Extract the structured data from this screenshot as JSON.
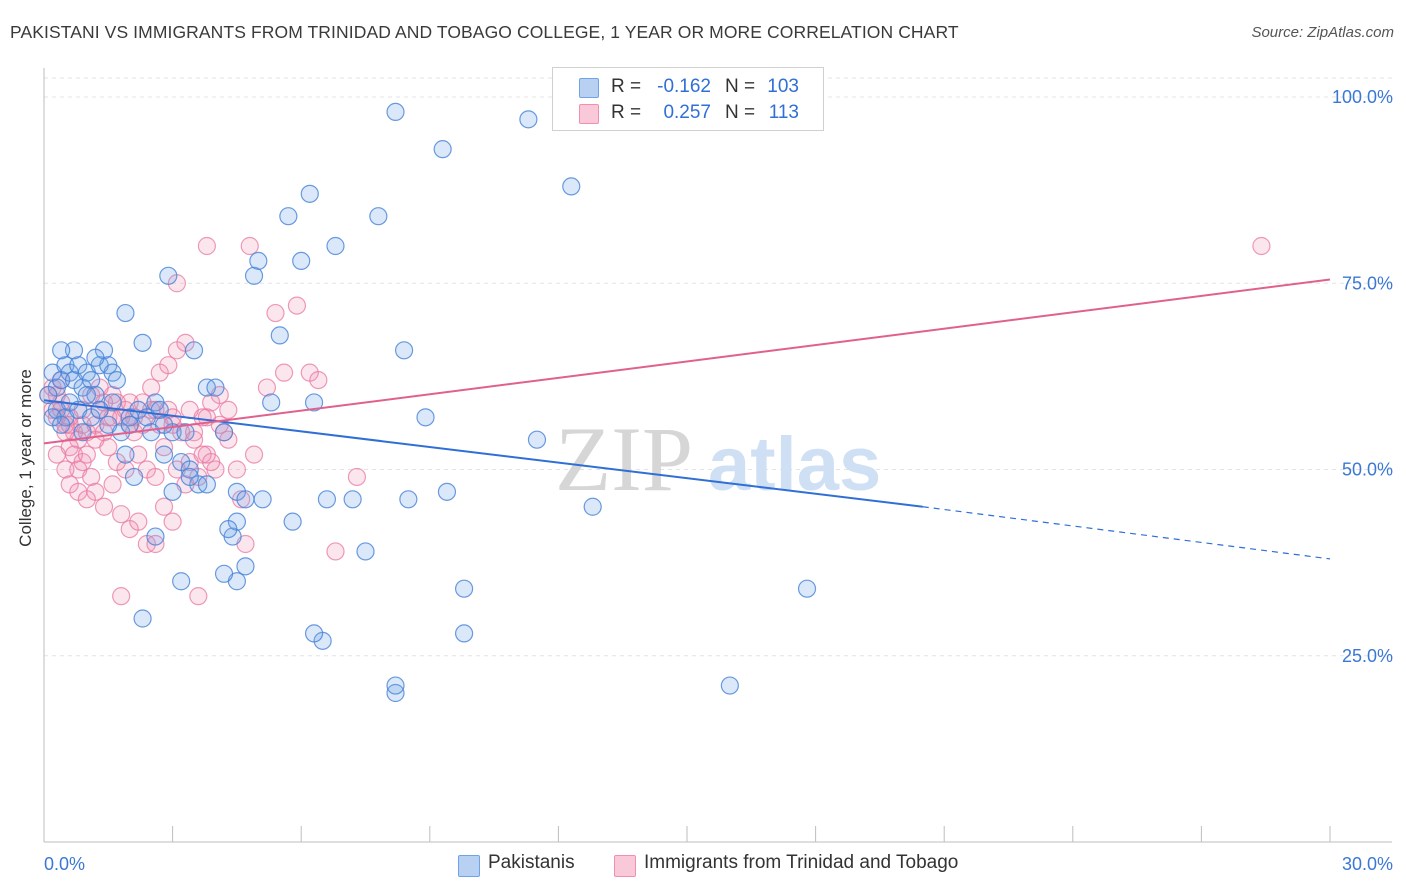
{
  "header": {
    "title": "PAKISTANI VS IMMIGRANTS FROM TRINIDAD AND TOBAGO COLLEGE, 1 YEAR OR MORE CORRELATION CHART",
    "source": "Source: ZipAtlas.com"
  },
  "legend": {
    "row1": {
      "r_label": "R =",
      "r_value": "-0.162",
      "n_label": "N =",
      "n_value": "103"
    },
    "row2": {
      "r_label": "R =",
      "r_value": "0.257",
      "n_label": "N =",
      "n_value": "113"
    }
  },
  "bottom_legend": {
    "pakistanis": "Pakistanis",
    "trinidad": "Immigrants from Trinidad and Tobago"
  },
  "watermark": {
    "zip": "ZIP",
    "atlas": "atlas"
  },
  "colors": {
    "blue": "#6fa3e6",
    "blue_line": "#2f6fd6",
    "pink": "#f28fb0",
    "pink_line": "#e0608e",
    "tick_text": "#3a78d4"
  },
  "chart_data": {
    "type": "scatter",
    "title": "PAKISTANI VS IMMIGRANTS FROM TRINIDAD AND TOBAGO COLLEGE, 1 YEAR OR MORE CORRELATION CHART",
    "ylabel": "College, 1 year or more",
    "xlabel": "",
    "xlim": [
      0,
      30
    ],
    "ylim": [
      0,
      105
    ],
    "x_ticks_labels": [
      "0.0%",
      "30.0%"
    ],
    "y_ticks": [
      25,
      50,
      75,
      100
    ],
    "y_tick_labels": [
      "25.0%",
      "50.0%",
      "75.0%",
      "100.0%"
    ],
    "grid": true,
    "series": [
      {
        "name": "Pakistanis",
        "color": "#6fa3e6",
        "r": -0.162,
        "n": 103,
        "trend": {
          "x0": 0,
          "y0": 59.3,
          "x1": 20.5,
          "y1": 45.0,
          "dash_to_x": 30,
          "dash_to_y": 38.0
        },
        "points": [
          [
            0.2,
            63
          ],
          [
            0.3,
            61
          ],
          [
            0.4,
            62
          ],
          [
            0.5,
            64
          ],
          [
            0.6,
            63
          ],
          [
            0.7,
            62
          ],
          [
            0.8,
            64
          ],
          [
            0.9,
            61
          ],
          [
            1.0,
            63
          ],
          [
            1.1,
            62
          ],
          [
            1.2,
            60
          ],
          [
            1.3,
            64
          ],
          [
            1.4,
            66
          ],
          [
            1.5,
            64
          ],
          [
            1.6,
            63
          ],
          [
            0.3,
            58
          ],
          [
            0.5,
            57
          ],
          [
            0.6,
            59
          ],
          [
            0.8,
            58
          ],
          [
            1.0,
            60
          ],
          [
            0.2,
            57
          ],
          [
            0.4,
            56
          ],
          [
            1.1,
            57
          ],
          [
            1.3,
            58
          ],
          [
            1.5,
            56
          ],
          [
            1.8,
            55
          ],
          [
            2.0,
            57
          ],
          [
            2.2,
            58
          ],
          [
            2.4,
            57
          ],
          [
            2.6,
            59
          ],
          [
            1.9,
            52
          ],
          [
            2.1,
            49
          ],
          [
            2.5,
            55
          ],
          [
            2.8,
            52
          ],
          [
            3.0,
            55
          ],
          [
            3.2,
            51
          ],
          [
            3.4,
            50
          ],
          [
            3.6,
            48
          ],
          [
            3.8,
            61
          ],
          [
            4.0,
            61
          ],
          [
            4.2,
            55
          ],
          [
            4.5,
            47
          ],
          [
            4.7,
            46
          ],
          [
            3.0,
            47
          ],
          [
            2.6,
            41
          ],
          [
            4.4,
            41
          ],
          [
            4.5,
            43
          ],
          [
            5.1,
            46
          ],
          [
            5.8,
            43
          ],
          [
            5.3,
            59
          ],
          [
            6.3,
            59
          ],
          [
            6.6,
            46
          ],
          [
            7.2,
            46
          ],
          [
            7.5,
            39
          ],
          [
            8.5,
            46
          ],
          [
            8.9,
            57
          ],
          [
            9.4,
            47
          ],
          [
            2.3,
            67
          ],
          [
            1.9,
            71
          ],
          [
            2.9,
            76
          ],
          [
            3.5,
            66
          ],
          [
            4.9,
            76
          ],
          [
            5.0,
            78
          ],
          [
            5.5,
            68
          ],
          [
            5.7,
            84
          ],
          [
            6.0,
            78
          ],
          [
            6.2,
            87
          ],
          [
            6.8,
            80
          ],
          [
            7.8,
            84
          ],
          [
            8.2,
            98
          ],
          [
            8.4,
            66
          ],
          [
            9.3,
            93
          ],
          [
            11.3,
            97
          ],
          [
            11.5,
            54
          ],
          [
            12.3,
            88
          ],
          [
            12.8,
            45
          ],
          [
            17.8,
            34
          ],
          [
            16.0,
            21
          ],
          [
            9.8,
            34
          ],
          [
            9.8,
            28
          ],
          [
            8.2,
            20
          ],
          [
            8.2,
            21
          ],
          [
            6.5,
            27
          ],
          [
            6.3,
            28
          ],
          [
            4.5,
            35
          ],
          [
            4.2,
            36
          ],
          [
            3.2,
            35
          ],
          [
            2.3,
            30
          ],
          [
            4.3,
            42
          ],
          [
            4.7,
            37
          ],
          [
            1.6,
            59
          ],
          [
            2.0,
            56
          ],
          [
            2.8,
            56
          ],
          [
            3.4,
            49
          ],
          [
            3.8,
            48
          ],
          [
            0.7,
            66
          ],
          [
            1.2,
            65
          ],
          [
            1.7,
            62
          ],
          [
            0.9,
            55
          ],
          [
            2.7,
            58
          ],
          [
            3.3,
            55
          ],
          [
            0.1,
            60
          ],
          [
            0.4,
            66
          ]
        ]
      },
      {
        "name": "Immigrants from Trinidad and Tobago",
        "color": "#f28fb0",
        "r": 0.257,
        "n": 113,
        "trend": {
          "x0": 0,
          "y0": 53.5,
          "x1": 30,
          "y1": 75.5
        },
        "points": [
          [
            0.1,
            60
          ],
          [
            0.2,
            58
          ],
          [
            0.3,
            57
          ],
          [
            0.4,
            59
          ],
          [
            0.5,
            56
          ],
          [
            0.6,
            57
          ],
          [
            0.7,
            55
          ],
          [
            0.8,
            54
          ],
          [
            0.9,
            56
          ],
          [
            1.0,
            55
          ],
          [
            0.2,
            61
          ],
          [
            0.3,
            60
          ],
          [
            0.4,
            58
          ],
          [
            0.5,
            55
          ],
          [
            0.6,
            53
          ],
          [
            0.7,
            52
          ],
          [
            0.8,
            50
          ],
          [
            0.9,
            51
          ],
          [
            1.0,
            52
          ],
          [
            1.1,
            49
          ],
          [
            1.2,
            56
          ],
          [
            1.3,
            58
          ],
          [
            1.4,
            55
          ],
          [
            1.5,
            57
          ],
          [
            1.6,
            60
          ],
          [
            1.7,
            59
          ],
          [
            1.8,
            57
          ],
          [
            1.9,
            58
          ],
          [
            2.0,
            56
          ],
          [
            2.1,
            55
          ],
          [
            1.2,
            47
          ],
          [
            1.4,
            45
          ],
          [
            1.6,
            48
          ],
          [
            1.8,
            44
          ],
          [
            2.0,
            42
          ],
          [
            2.2,
            43
          ],
          [
            2.4,
            40
          ],
          [
            2.6,
            40
          ],
          [
            2.8,
            45
          ],
          [
            3.0,
            43
          ],
          [
            2.2,
            52
          ],
          [
            2.4,
            50
          ],
          [
            2.6,
            49
          ],
          [
            2.8,
            53
          ],
          [
            3.0,
            56
          ],
          [
            3.2,
            55
          ],
          [
            3.4,
            51
          ],
          [
            3.6,
            49
          ],
          [
            3.8,
            52
          ],
          [
            4.0,
            50
          ],
          [
            2.5,
            61
          ],
          [
            2.7,
            63
          ],
          [
            2.9,
            64
          ],
          [
            3.1,
            66
          ],
          [
            3.3,
            67
          ],
          [
            3.5,
            55
          ],
          [
            3.7,
            57
          ],
          [
            3.9,
            59
          ],
          [
            4.1,
            60
          ],
          [
            4.3,
            54
          ],
          [
            4.5,
            50
          ],
          [
            4.6,
            46
          ],
          [
            4.7,
            40
          ],
          [
            4.9,
            52
          ],
          [
            5.2,
            61
          ],
          [
            5.4,
            71
          ],
          [
            5.6,
            63
          ],
          [
            5.9,
            72
          ],
          [
            6.2,
            63
          ],
          [
            6.4,
            62
          ],
          [
            4.8,
            80
          ],
          [
            3.8,
            80
          ],
          [
            3.1,
            75
          ],
          [
            7.3,
            49
          ],
          [
            6.8,
            39
          ],
          [
            0.3,
            52
          ],
          [
            0.5,
            50
          ],
          [
            0.6,
            48
          ],
          [
            0.8,
            47
          ],
          [
            1.0,
            46
          ],
          [
            1.1,
            60
          ],
          [
            1.3,
            61
          ],
          [
            1.5,
            53
          ],
          [
            1.7,
            51
          ],
          [
            1.9,
            50
          ],
          [
            2.1,
            57
          ],
          [
            2.3,
            59
          ],
          [
            2.5,
            58
          ],
          [
            2.7,
            56
          ],
          [
            2.9,
            58
          ],
          [
            3.1,
            50
          ],
          [
            3.3,
            48
          ],
          [
            3.5,
            54
          ],
          [
            3.7,
            52
          ],
          [
            3.9,
            51
          ],
          [
            4.1,
            56
          ],
          [
            4.3,
            58
          ],
          [
            1.8,
            33
          ],
          [
            3.6,
            33
          ],
          [
            28.4,
            80
          ],
          [
            0.4,
            62
          ],
          [
            0.6,
            56
          ],
          [
            0.9,
            58
          ],
          [
            1.2,
            54
          ],
          [
            1.4,
            59
          ],
          [
            1.6,
            57
          ],
          [
            2.0,
            59
          ],
          [
            2.3,
            56
          ],
          [
            2.6,
            58
          ],
          [
            3.0,
            57
          ],
          [
            3.4,
            58
          ],
          [
            3.8,
            57
          ],
          [
            4.2,
            55
          ]
        ]
      }
    ]
  }
}
